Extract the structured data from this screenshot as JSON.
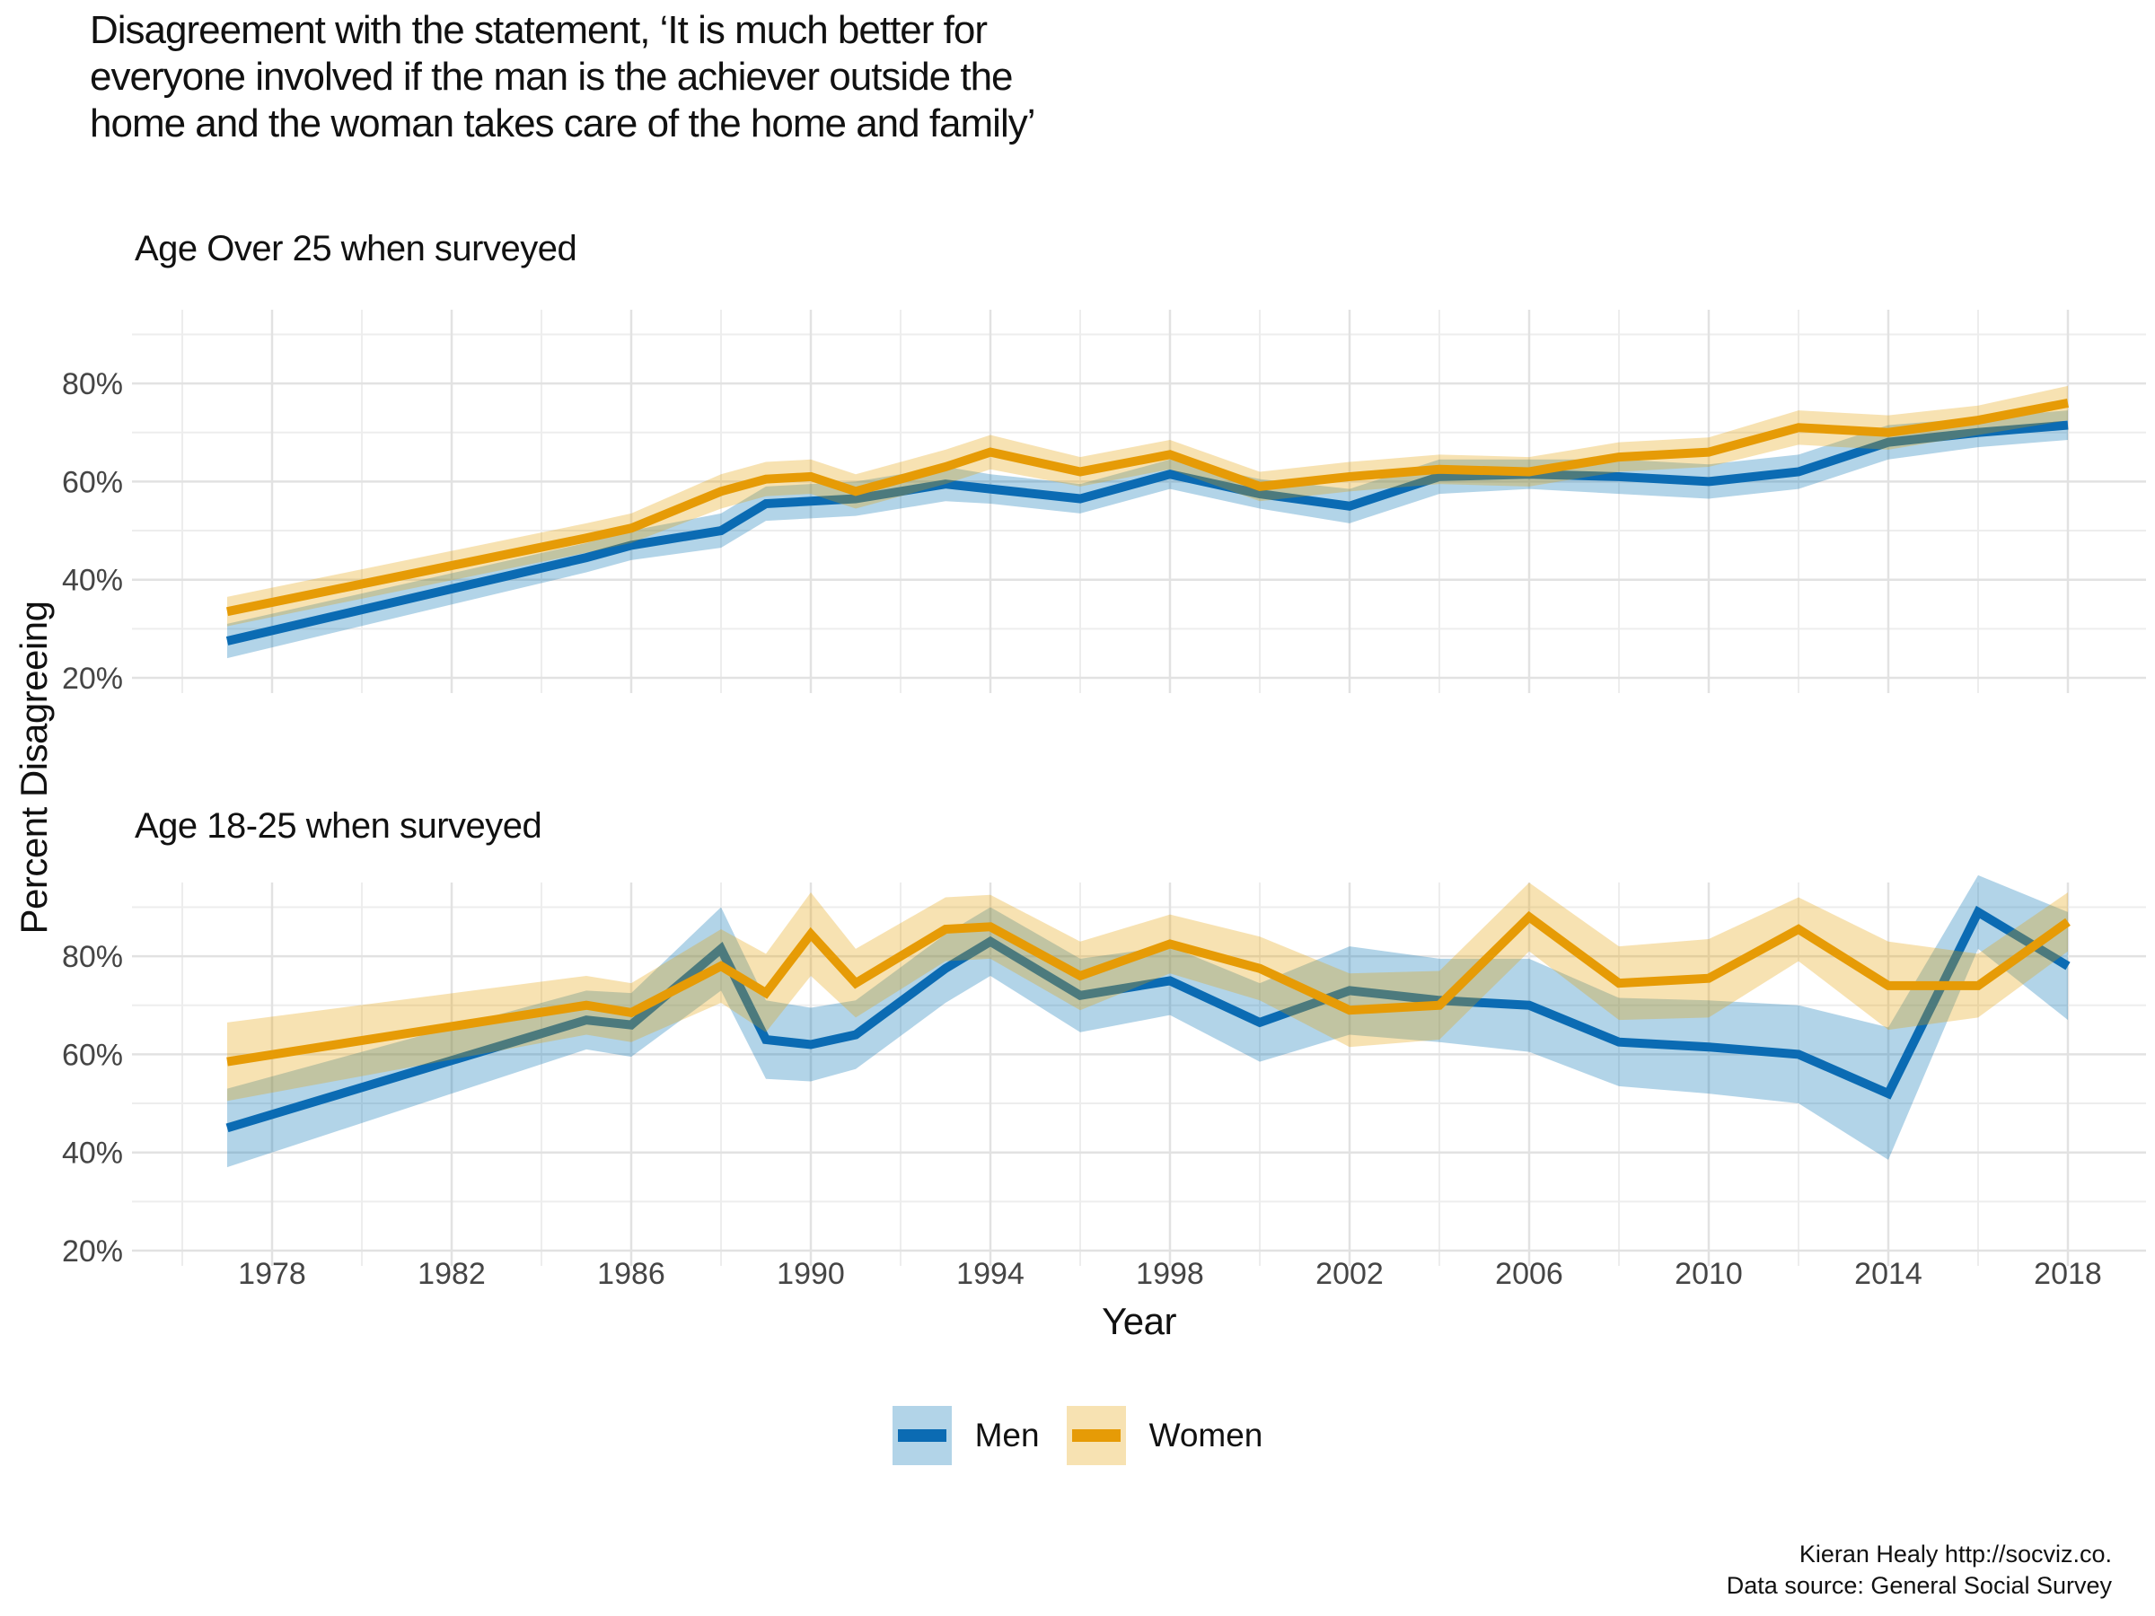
{
  "title": {
    "line1": "Disagreement with the statement, ‘It is much better for",
    "line2": "everyone involved if the man is the achiever outside the",
    "line3": "home and the woman takes care of the home and family’"
  },
  "y_axis_title": "Percent Disagreeing",
  "x_axis_title": "Year",
  "legend": {
    "men": "Men",
    "women": "Women"
  },
  "attribution": {
    "line1": "Kieran Healy http://socviz.co.",
    "line2": "Data source: General Social Survey"
  },
  "colors": {
    "men_line": "#0b6bb3",
    "women_line": "#e69b06",
    "men_band": "rgba(0,114,178,0.30)",
    "women_band": "rgba(230,159,0,0.30)",
    "grid_major": "#e2e2e2",
    "grid_minor": "#ededed",
    "tick_label": "#454545"
  },
  "chart_data": {
    "type": "line",
    "subtype": "line-with-confidence-ribbons",
    "xlabel": "Year",
    "ylabel": "Percent Disagreeing",
    "grid": true,
    "legend_position": "bottom",
    "x": [
      1977,
      1985,
      1986,
      1988,
      1989,
      1990,
      1991,
      1993,
      1994,
      1996,
      1998,
      2000,
      2002,
      2004,
      2006,
      2008,
      2010,
      2012,
      2014,
      2016,
      2018
    ],
    "x_major_ticks": [
      1978,
      1982,
      1986,
      1990,
      1994,
      1998,
      2002,
      2006,
      2010,
      2014,
      2018
    ],
    "x_minor_ticks": [
      1976,
      1980,
      1984,
      1988,
      1992,
      1996,
      2000,
      2004,
      2008,
      2012,
      2016
    ],
    "y_major_ticks": [
      20,
      40,
      60,
      80
    ],
    "y_minor_ticks": [
      30,
      50,
      70,
      90
    ],
    "y_tick_suffix": "%",
    "ylim": [
      16.5,
      95.5
    ],
    "xlim": [
      1974.9,
      2019.7
    ],
    "facets": [
      {
        "label": "Age Over 25 when surveyed",
        "series": [
          {
            "name": "Men",
            "values": [
              27.5,
              44.5,
              47,
              50,
              55.5,
              56,
              56.5,
              59.5,
              58.5,
              56.5,
              61.5,
              57.5,
              55,
              61,
              61.5,
              61,
              60,
              62,
              68,
              70,
              71.5
            ],
            "lower": [
              24,
              41.5,
              44,
              46.5,
              52,
              52.5,
              53,
              56,
              55.5,
              53.5,
              58.5,
              54.5,
              51.5,
              57.5,
              58.5,
              57.5,
              56.5,
              58.5,
              64.5,
              67,
              68.5
            ],
            "upper": [
              31,
              47.5,
              50,
              53.5,
              59,
              59.5,
              60,
              63,
              61.5,
              59.5,
              64.5,
              60.5,
              58.5,
              64.5,
              64.5,
              64.5,
              63.5,
              65.5,
              71.5,
              73,
              74.5
            ]
          },
          {
            "name": "Women",
            "values": [
              33.5,
              48.5,
              50.5,
              58,
              60.5,
              61,
              58,
              63,
              66,
              62,
              65.5,
              59,
              61,
              62.5,
              62,
              65,
              66,
              71,
              70,
              72.5,
              76
            ],
            "lower": [
              30.5,
              45.5,
              47.5,
              54.5,
              57,
              57.5,
              54.5,
              59.5,
              62.5,
              59,
              62.5,
              56,
              58,
              59.5,
              59,
              62,
              63,
              67.5,
              66.5,
              69.5,
              72.5
            ],
            "upper": [
              36.5,
              51.5,
              53.5,
              61.5,
              64,
              64.5,
              61.5,
              66.5,
              69.5,
              65,
              68.5,
              62,
              64,
              65.5,
              65,
              68,
              69,
              74.5,
              73.5,
              75.5,
              79.5
            ]
          }
        ]
      },
      {
        "label": "Age 18-25 when surveyed",
        "series": [
          {
            "name": "Men",
            "values": [
              45,
              67,
              66,
              81.5,
              63,
              62,
              64,
              77.5,
              83,
              72,
              75,
              66.5,
              73,
              71,
              70,
              62.5,
              61.5,
              60,
              52,
              89,
              78
            ],
            "lower": [
              37,
              61,
              59.5,
              73,
              55,
              54.5,
              57,
              70.5,
              76,
              64.5,
              68,
              58.5,
              64,
              62.5,
              60.5,
              53.5,
              52,
              50,
              38.5,
              81.5,
              67
            ],
            "upper": [
              53,
              73,
              72.5,
              90,
              71,
              69.5,
              71,
              84.5,
              90,
              79.5,
              82,
              74.5,
              82,
              79.5,
              79.5,
              71.5,
              71,
              70,
              65.5,
              96.5,
              89
            ]
          },
          {
            "name": "Women",
            "values": [
              58.5,
              70,
              68.5,
              78,
              72.5,
              84.5,
              74.5,
              85.5,
              86,
              76,
              82.5,
              77.5,
              69,
              70,
              88,
              74.5,
              75.5,
              85.5,
              74,
              74,
              87
            ],
            "lower": [
              50.5,
              64,
              62.5,
              70.5,
              64.5,
              76,
              67.5,
              79,
              79.5,
              69,
              76.5,
              71,
              61.5,
              63,
              81,
              67,
              67.5,
              79,
              65,
              67.5,
              81
            ],
            "upper": [
              66.5,
              76,
              74.5,
              85.5,
              80.5,
              93,
              81.5,
              92,
              92.5,
              83,
              88.5,
              84,
              76.5,
              77,
              95,
              82,
              83.5,
              92,
              83,
              80.5,
              93
            ]
          }
        ]
      }
    ]
  }
}
